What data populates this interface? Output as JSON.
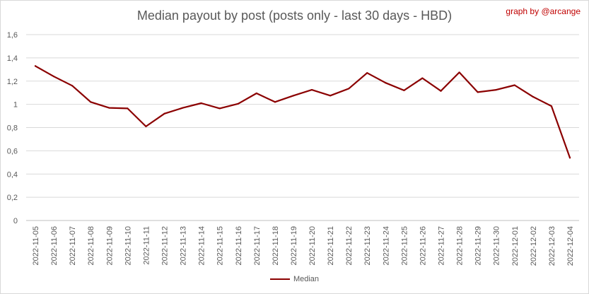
{
  "credit": "graph by @arcange",
  "chart_data": {
    "type": "line",
    "title": "Median payout by post (posts only - last 30 days - HBD)",
    "xlabel": "",
    "ylabel": "",
    "ylim": [
      0,
      1.6
    ],
    "yticks": [
      "0",
      "0,2",
      "0,4",
      "0,6",
      "0,8",
      "1",
      "1,2",
      "1,4",
      "1,6"
    ],
    "grid": true,
    "legend": "bottom",
    "categories": [
      "2022-11-05",
      "2022-11-06",
      "2022-11-07",
      "2022-11-08",
      "2022-11-09",
      "2022-11-10",
      "2022-11-11",
      "2022-11-12",
      "2022-11-13",
      "2022-11-14",
      "2022-11-15",
      "2022-11-16",
      "2022-11-17",
      "2022-11-18",
      "2022-11-19",
      "2022-11-20",
      "2022-11-21",
      "2022-11-22",
      "2022-11-23",
      "2022-11-24",
      "2022-11-25",
      "2022-11-26",
      "2022-11-27",
      "2022-11-28",
      "2022-11-29",
      "2022-11-30",
      "2022-12-01",
      "2022-12-02",
      "2022-12-03",
      "2022-12-04"
    ],
    "series": [
      {
        "name": "Median",
        "color": "#8b0000",
        "values": [
          1.33,
          1.24,
          1.16,
          1.02,
          0.97,
          0.965,
          0.81,
          0.92,
          0.97,
          1.01,
          0.965,
          1.005,
          1.095,
          1.02,
          1.075,
          1.125,
          1.075,
          1.135,
          1.27,
          1.185,
          1.12,
          1.225,
          1.115,
          1.275,
          1.105,
          1.125,
          1.165,
          1.065,
          0.985,
          0.54
        ]
      }
    ]
  }
}
